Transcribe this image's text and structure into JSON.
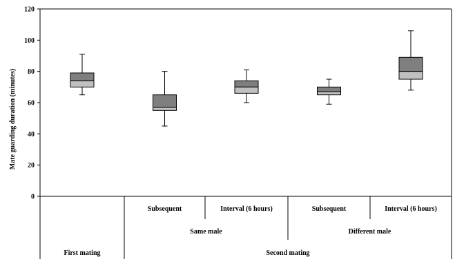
{
  "chart_data": {
    "type": "box",
    "ylabel": "Mate guarding duration (minutes)",
    "ylim": [
      0,
      120
    ],
    "yticks": [
      0,
      20,
      40,
      60,
      80,
      100,
      120
    ],
    "grid": false,
    "colors": {
      "upper_box": "#7f7f7f",
      "lower_box": "#c0c0c0",
      "outline": "#000000"
    },
    "categories": [
      {
        "label": "",
        "min": 65,
        "q1": 70,
        "median": 74,
        "q3": 79,
        "max": 91
      },
      {
        "label": "Subsequent",
        "min": 45,
        "q1": 55,
        "median": 57,
        "q3": 65,
        "max": 80
      },
      {
        "label": "Interval (6 hours)",
        "min": 60,
        "q1": 66,
        "median": 70,
        "q3": 74,
        "max": 81
      },
      {
        "label": "Subsequent",
        "min": 59,
        "q1": 65,
        "median": 67,
        "q3": 70,
        "max": 75
      },
      {
        "label": "Interval (6 hours)",
        "min": 68,
        "q1": 75,
        "median": 80,
        "q3": 89,
        "max": 106
      }
    ],
    "groups_level2": [
      {
        "label": "Same male",
        "span": [
          1,
          2
        ]
      },
      {
        "label": "Different male",
        "span": [
          3,
          4
        ]
      }
    ],
    "groups_level1": [
      {
        "label": "First mating",
        "span": [
          0,
          0
        ]
      },
      {
        "label": "Second mating",
        "span": [
          1,
          4
        ]
      }
    ]
  }
}
